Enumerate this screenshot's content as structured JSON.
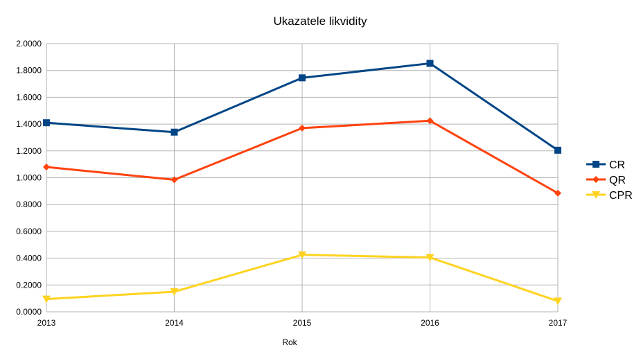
{
  "chart_data": {
    "type": "line",
    "title": "Ukazatele likvidity",
    "xlabel": "Rok",
    "ylabel": "",
    "x": [
      "2013",
      "2014",
      "2015",
      "2016",
      "2017"
    ],
    "ylim": [
      0,
      2
    ],
    "yticks": [
      "0.0000",
      "0.2000",
      "0.4000",
      "0.6000",
      "0.8000",
      "1.0000",
      "1.2000",
      "1.4000",
      "1.6000",
      "1.8000",
      "2.0000"
    ],
    "grid": true,
    "legend_position": "right",
    "series": [
      {
        "name": "CR",
        "color": "#004586",
        "marker": "square",
        "values": [
          1.41,
          1.34,
          1.745,
          1.853,
          1.205
        ]
      },
      {
        "name": "QR",
        "color": "#ff420e",
        "marker": "diamond",
        "values": [
          1.08,
          0.985,
          1.37,
          1.425,
          0.885
        ]
      },
      {
        "name": "CPR",
        "color": "#ffd320",
        "marker": "triangle-down",
        "values": [
          0.095,
          0.15,
          0.425,
          0.405,
          0.08
        ]
      }
    ]
  }
}
